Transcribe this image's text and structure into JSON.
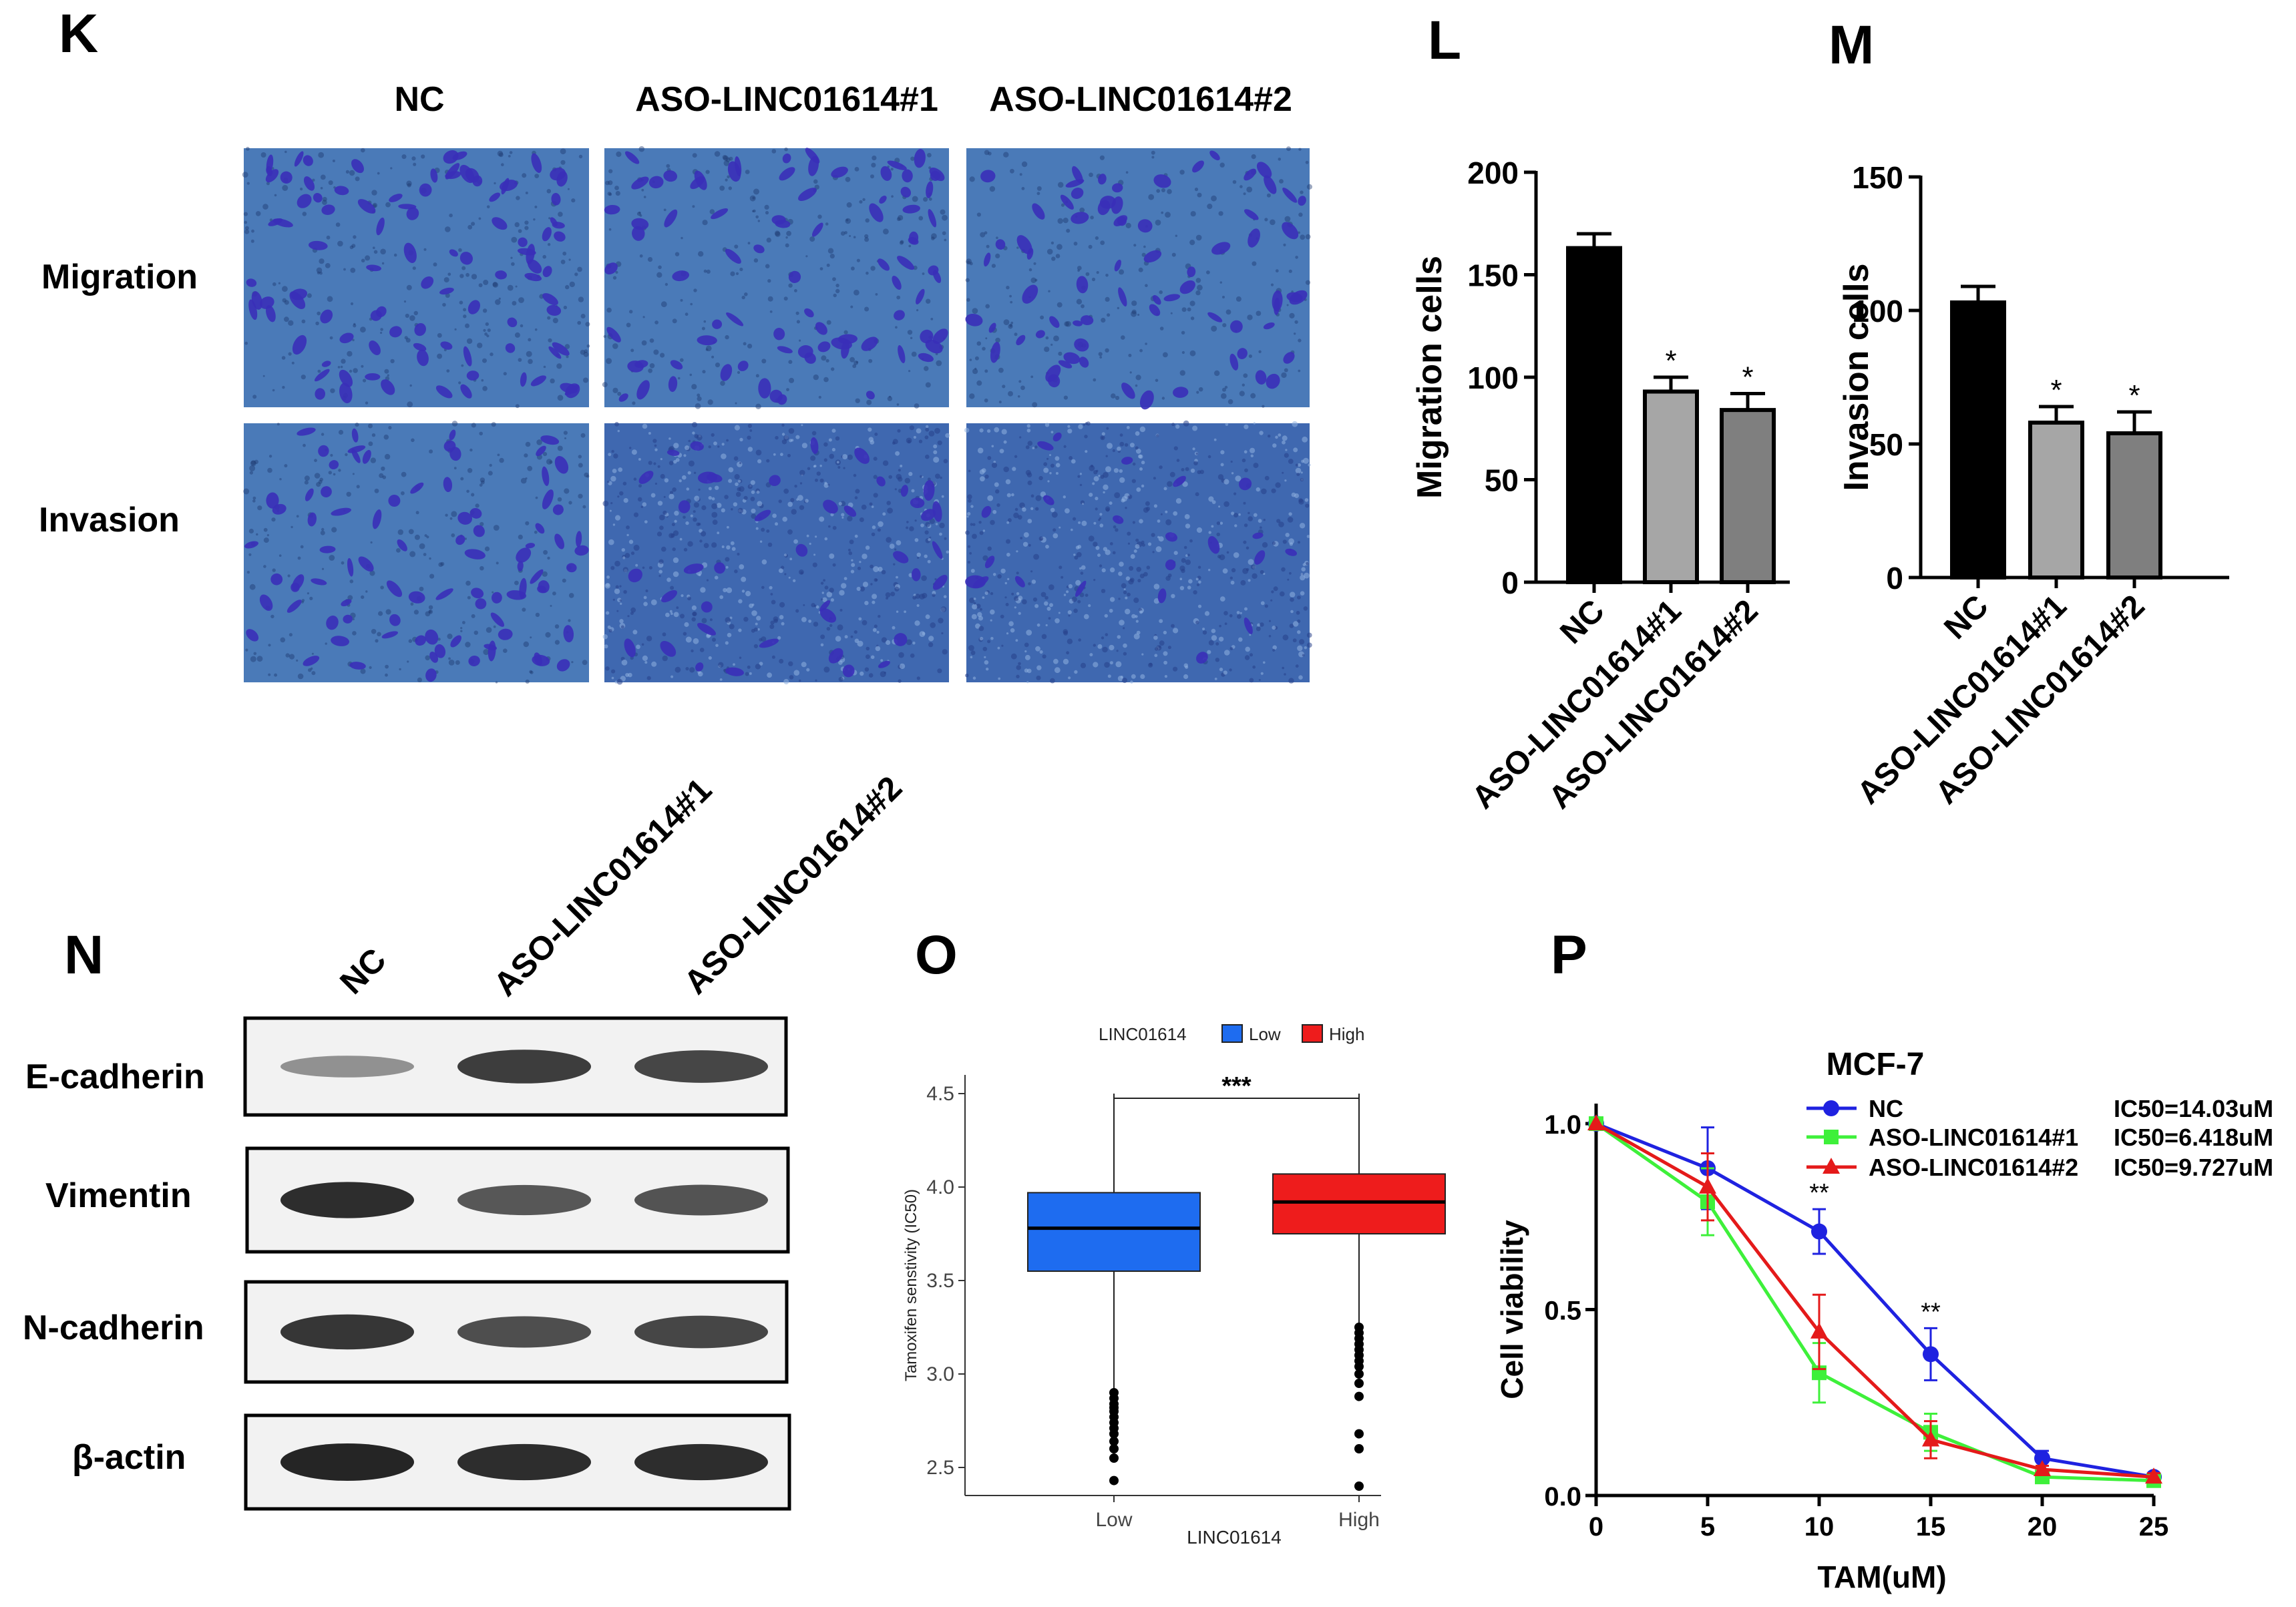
{
  "panel_labels": {
    "k": "K",
    "l": "L",
    "m": "M",
    "n": "N",
    "o": "O",
    "p": "P"
  },
  "panel_k": {
    "columns": [
      "NC",
      "ASO-LINC01614#1",
      "ASO-LINC01614#2"
    ],
    "rows": [
      "Migration",
      "Invasion"
    ],
    "image_color": "#4a7ab8",
    "cell_color": "#3a2fb8"
  },
  "panel_n": {
    "columns": [
      "NC",
      "ASO-LINC01614#1",
      "ASO-LINC01614#2"
    ],
    "rows": [
      "E-cadherin",
      "Vimentin",
      "N-cadherin",
      "β-actin"
    ],
    "band_intensity": [
      [
        0.35,
        0.85,
        0.8
      ],
      [
        0.95,
        0.7,
        0.72
      ],
      [
        0.9,
        0.75,
        0.8
      ],
      [
        1.0,
        0.95,
        0.95
      ]
    ]
  },
  "chart_data": [
    {
      "id": "L",
      "type": "bar",
      "categories": [
        "NC",
        "ASO-LINC01614#1",
        "ASO-LINC01614#2"
      ],
      "values": [
        163,
        93,
        84
      ],
      "errors": [
        7,
        7,
        8
      ],
      "significance": [
        "",
        "*",
        "*"
      ],
      "colors": [
        "#000000",
        "#a6a6a6",
        "#7f7f7f"
      ],
      "ylabel": "Migration cells",
      "ylim": [
        0,
        200
      ],
      "yticks": [
        0,
        50,
        100,
        150,
        200
      ]
    },
    {
      "id": "M",
      "type": "bar",
      "categories": [
        "NC",
        "ASO-LINC01614#1",
        "ASO-LINC01614#2"
      ],
      "values": [
        103,
        58,
        54
      ],
      "errors": [
        6,
        6,
        8
      ],
      "significance": [
        "",
        "*",
        "*"
      ],
      "colors": [
        "#000000",
        "#a6a6a6",
        "#7f7f7f"
      ],
      "ylabel": "Invasion cells",
      "ylim": [
        0,
        150
      ],
      "yticks": [
        0,
        50,
        100,
        150
      ]
    },
    {
      "id": "O",
      "type": "box",
      "legend_title": "LINC01614",
      "categories": [
        "Low",
        "High"
      ],
      "colors": [
        "#1e6cf0",
        "#ee1c1c"
      ],
      "xlabel": "LINC01614",
      "ylabel": "Tamoxifen senstivity (IC50)",
      "ylim": [
        2.35,
        4.6
      ],
      "yticks": [
        2.5,
        3.0,
        3.5,
        4.0,
        4.5
      ],
      "boxes": [
        {
          "q1": 3.55,
          "median": 3.78,
          "q3": 3.97,
          "whisker_low": 2.92,
          "whisker_high": 4.5,
          "outliers": [
            2.9,
            2.87,
            2.84,
            2.82,
            2.8,
            2.77,
            2.74,
            2.71,
            2.68,
            2.64,
            2.6,
            2.55,
            2.43
          ]
        },
        {
          "q1": 3.75,
          "median": 3.92,
          "q3": 4.07,
          "whisker_low": 3.27,
          "whisker_high": 4.5,
          "outliers": [
            3.25,
            3.22,
            3.19,
            3.16,
            3.13,
            3.1,
            3.07,
            3.04,
            3.0,
            2.95,
            2.88,
            2.68,
            2.6,
            2.4
          ]
        }
      ],
      "significance": "***"
    },
    {
      "id": "P",
      "type": "line",
      "title": "MCF-7",
      "xlabel": "TAM(uM)",
      "ylabel": "Cell viability",
      "x": [
        0,
        5,
        10,
        15,
        20,
        25
      ],
      "xlim": [
        0,
        25
      ],
      "ylim": [
        0,
        1.0
      ],
      "xticks": [
        0,
        5,
        10,
        15,
        20,
        25
      ],
      "yticks": [
        0.0,
        0.5,
        1.0
      ],
      "series": [
        {
          "name": "NC",
          "color": "#1f22e0",
          "marker": "circle",
          "values": [
            1.0,
            0.88,
            0.71,
            0.38,
            0.1,
            0.05
          ],
          "errors": [
            0,
            0.11,
            0.06,
            0.07,
            0.02,
            0.01
          ],
          "ic50": "IC50=14.03uM"
        },
        {
          "name": "ASO-LINC01614#1",
          "color": "#3ef03a",
          "marker": "square",
          "values": [
            1.0,
            0.79,
            0.33,
            0.17,
            0.05,
            0.04
          ],
          "errors": [
            0,
            0.09,
            0.08,
            0.05,
            0.01,
            0.01
          ],
          "ic50": "IC50=6.418uM"
        },
        {
          "name": "ASO-LINC01614#2",
          "color": "#e41a1a",
          "marker": "triangle",
          "values": [
            1.0,
            0.83,
            0.44,
            0.15,
            0.07,
            0.05
          ],
          "errors": [
            0,
            0.09,
            0.1,
            0.05,
            0.01,
            0.01
          ],
          "ic50": "IC50=9.727uM"
        }
      ],
      "annotations": [
        {
          "x": 10,
          "text": "**"
        },
        {
          "x": 15,
          "text": "**"
        }
      ]
    }
  ]
}
